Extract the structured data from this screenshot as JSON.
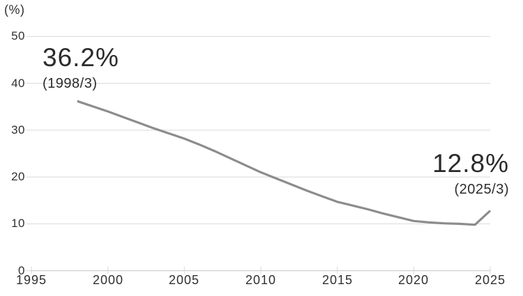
{
  "chart_data": {
    "type": "line",
    "title": "",
    "ylabel": "(%)",
    "xlabel": "",
    "xlim": [
      1995,
      2025
    ],
    "ylim": [
      0,
      50
    ],
    "x_ticks": [
      1995,
      2000,
      2005,
      2010,
      2015,
      2020,
      2025
    ],
    "y_ticks": [
      0,
      10,
      20,
      30,
      40,
      50
    ],
    "grid": "horizontal",
    "legend": "none",
    "line_color": "#8c8c8c",
    "grid_color": "#d9d9d9",
    "axis_color": "#cfcfcf",
    "text_color": "#303030",
    "points": [
      [
        1998,
        36.2
      ],
      [
        1999,
        35.1
      ],
      [
        2000,
        34.0
      ],
      [
        2001,
        32.8
      ],
      [
        2002,
        31.6
      ],
      [
        2003,
        30.4
      ],
      [
        2004,
        29.3
      ],
      [
        2005,
        28.2
      ],
      [
        2006,
        26.9
      ],
      [
        2007,
        25.5
      ],
      [
        2008,
        24.0
      ],
      [
        2009,
        22.5
      ],
      [
        2010,
        21.0
      ],
      [
        2011,
        19.7
      ],
      [
        2012,
        18.4
      ],
      [
        2013,
        17.1
      ],
      [
        2014,
        15.9
      ],
      [
        2015,
        14.7
      ],
      [
        2016,
        13.9
      ],
      [
        2017,
        13.1
      ],
      [
        2018,
        12.2
      ],
      [
        2019,
        11.4
      ],
      [
        2020,
        10.6
      ],
      [
        2021,
        10.3
      ],
      [
        2022,
        10.1
      ],
      [
        2023,
        10.0
      ],
      [
        2024,
        9.8
      ],
      [
        2025,
        12.8
      ]
    ],
    "annotations": [
      {
        "value": "36.2%",
        "date": "(1998/3)",
        "position": "start"
      },
      {
        "value": "12.8%",
        "date": "(2025/3)",
        "position": "end"
      }
    ]
  }
}
